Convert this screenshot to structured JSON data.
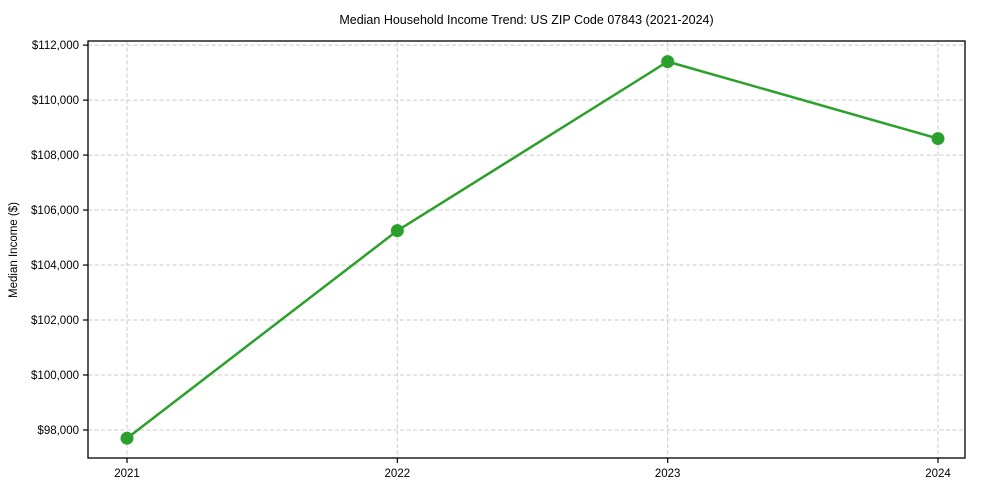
{
  "chart_data": {
    "type": "line",
    "title": "Median Household Income Trend: US ZIP Code 07843 (2021-2024)",
    "xlabel": "",
    "ylabel": "Median Income ($)",
    "categories": [
      "2021",
      "2022",
      "2023",
      "2024"
    ],
    "series": [
      {
        "name": "Median Household Income",
        "values": [
          97700,
          105250,
          111400,
          108600
        ],
        "color": "#2ca02c",
        "marker": "circle"
      }
    ],
    "yticks": [
      {
        "value": 98000,
        "label": "$98,000"
      },
      {
        "value": 100000,
        "label": "$100,000"
      },
      {
        "value": 102000,
        "label": "$102,000"
      },
      {
        "value": 104000,
        "label": "$104,000"
      },
      {
        "value": 106000,
        "label": "$106,000"
      },
      {
        "value": 108000,
        "label": "$108,000"
      },
      {
        "value": 110000,
        "label": "$110,000"
      },
      {
        "value": 112000,
        "label": "$112,000"
      }
    ],
    "ylim": [
      96980,
      112150
    ],
    "grid": "dashed",
    "legend_position": "none",
    "colors": {
      "line": "#2ca02c",
      "grid": "#cbcbcb",
      "axis": "#000000",
      "background": "#ffffff",
      "text": "#000000"
    }
  }
}
